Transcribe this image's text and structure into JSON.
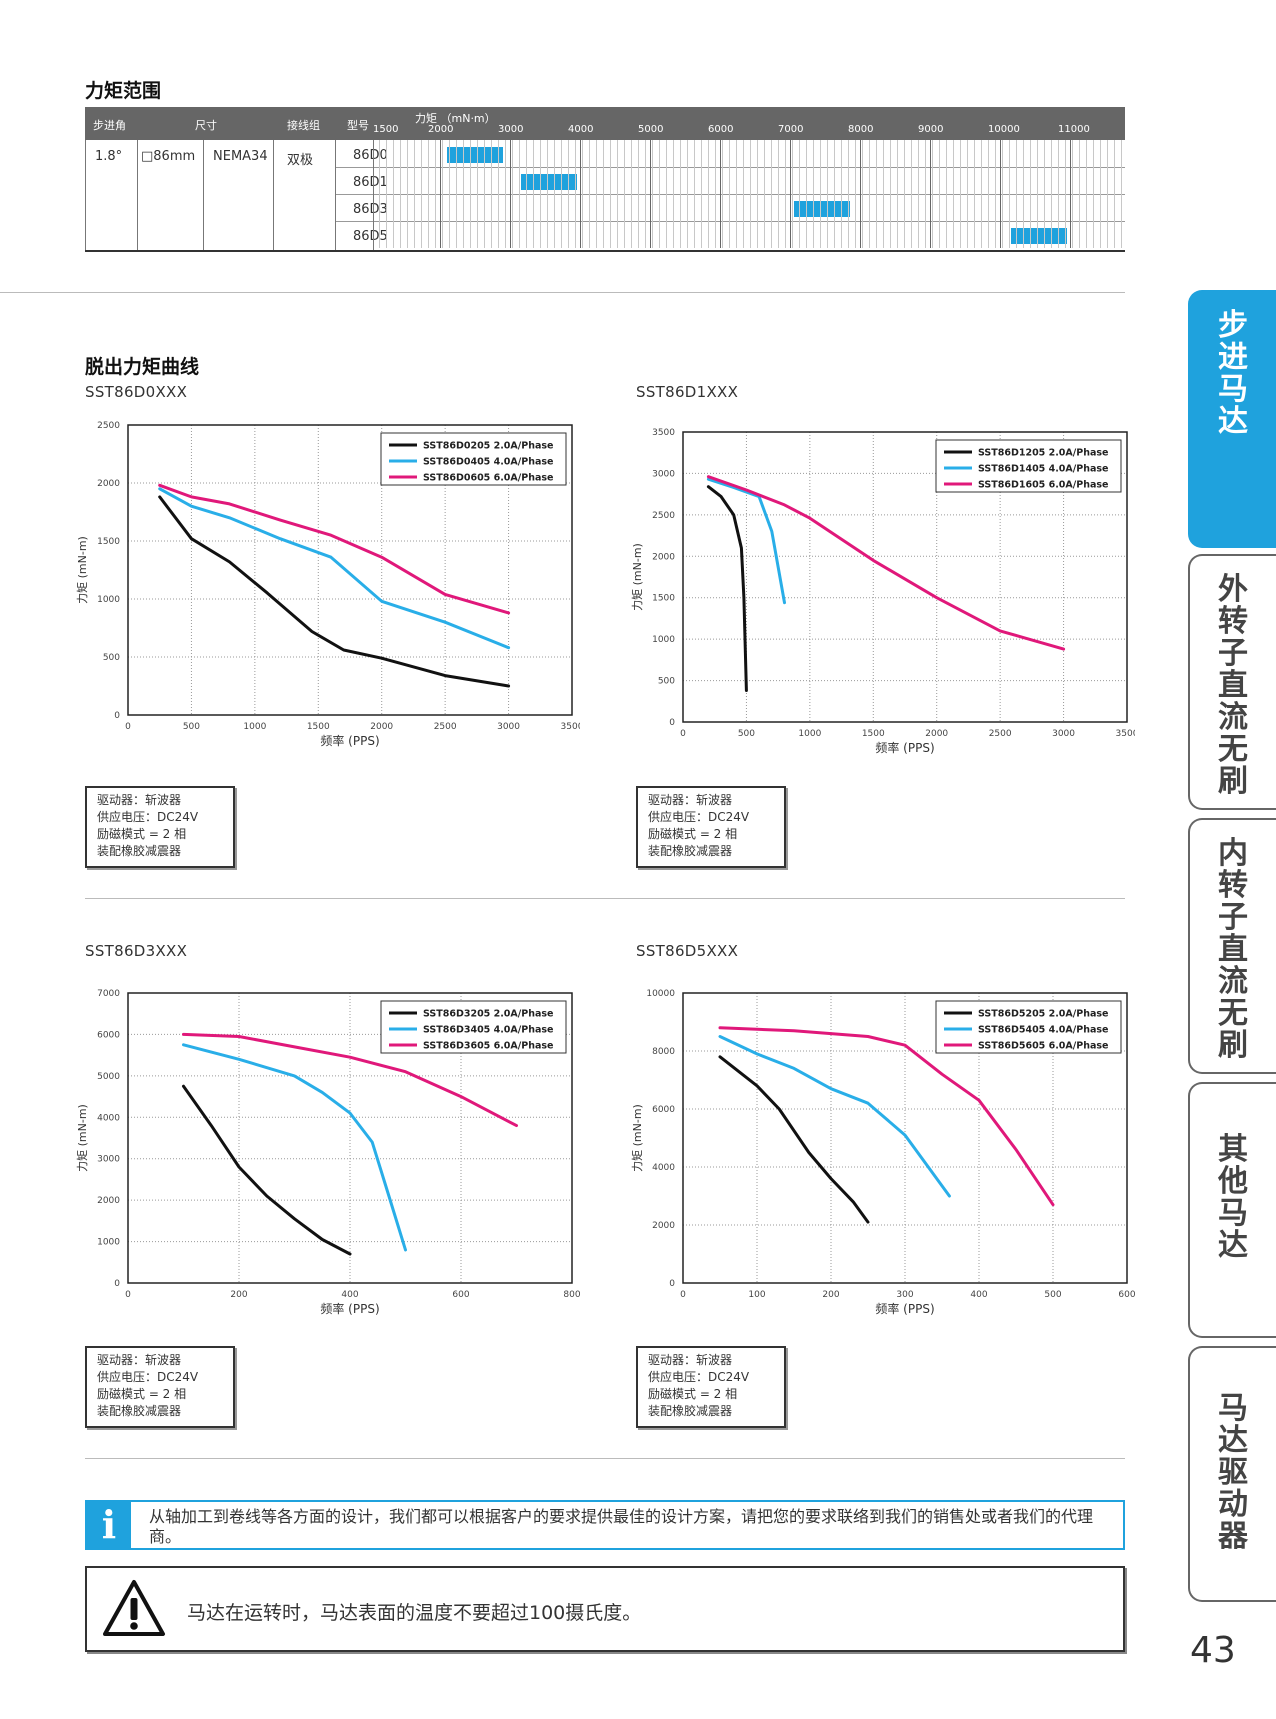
{
  "torque_section": {
    "title": "力矩范围",
    "headers": {
      "step_angle": "步进角",
      "size": "尺寸",
      "winding": "接线组",
      "model": "型号",
      "torque": "力矩 （mN·m）"
    },
    "scale_labels": [
      "1500",
      "2000",
      "3000",
      "4000",
      "5000",
      "6000",
      "7000",
      "8000",
      "9000",
      "10000",
      "11000"
    ],
    "row": {
      "step_angle": "1.8°",
      "size": "□86mm",
      "nema": "NEMA34",
      "winding": "双极"
    },
    "models": [
      {
        "name": "86D0",
        "range": [
          2100,
          2900
        ]
      },
      {
        "name": "86D1",
        "range": [
          3150,
          3950
        ]
      },
      {
        "name": "86D3",
        "range": [
          7050,
          7850
        ]
      },
      {
        "name": "86D5",
        "range": [
          10150,
          10950
        ]
      }
    ],
    "bar_color": "#1fa2dd"
  },
  "curves_section": {
    "title": "脱出力矩曲线"
  },
  "charts": [
    {
      "id": "d0",
      "subtitle": "SST86D0XXX",
      "note": [
        "驱动器：斩波器",
        "供应电压：DC24V",
        "励磁模式 = 2 相",
        "装配橡胶减震器"
      ]
    },
    {
      "id": "d1",
      "subtitle": "SST86D1XXX",
      "note": [
        "驱动器：斩波器",
        "供应电压：DC24V",
        "励磁模式 = 2 相",
        "装配橡胶减震器"
      ]
    },
    {
      "id": "d3",
      "subtitle": "SST86D3XXX",
      "note": [
        "驱动器：斩波器",
        "供应电压：DC24V",
        "励磁模式 = 2 相",
        "装配橡胶减震器"
      ]
    },
    {
      "id": "d5",
      "subtitle": "SST86D5XXX",
      "note": [
        "驱动器：斩波器",
        "供应电压：DC24V",
        "励磁模式 = 2 相",
        "装配橡胶减震器"
      ]
    }
  ],
  "chart_data": [
    {
      "type": "line",
      "xlabel": "频率 (PPS)",
      "ylabel": "力矩 (mN-m)",
      "xlim": [
        0,
        3500
      ],
      "ylim": [
        0,
        2500
      ],
      "xticks": [
        0,
        500,
        1000,
        1500,
        2000,
        2500,
        3000,
        3500
      ],
      "yticks": [
        0,
        500,
        1000,
        1500,
        2000,
        2500
      ],
      "grid": true,
      "legend": "top-right",
      "series": [
        {
          "name": "SST86D0205  2.0A/Phase",
          "color": "#111111",
          "points": [
            [
              250,
              1880
            ],
            [
              500,
              1520
            ],
            [
              800,
              1320
            ],
            [
              1100,
              1050
            ],
            [
              1450,
              720
            ],
            [
              1700,
              560
            ],
            [
              2000,
              490
            ],
            [
              2500,
              340
            ],
            [
              3000,
              250
            ]
          ]
        },
        {
          "name": "SST86D0405  4.0A/Phase",
          "color": "#29aee8",
          "points": [
            [
              250,
              1950
            ],
            [
              500,
              1800
            ],
            [
              800,
              1700
            ],
            [
              1200,
              1520
            ],
            [
              1600,
              1360
            ],
            [
              2000,
              980
            ],
            [
              2500,
              800
            ],
            [
              3000,
              580
            ]
          ]
        },
        {
          "name": "SST86D0605  6.0A/Phase",
          "color": "#e0187a",
          "points": [
            [
              250,
              1980
            ],
            [
              500,
              1880
            ],
            [
              800,
              1820
            ],
            [
              1200,
              1680
            ],
            [
              1600,
              1550
            ],
            [
              2000,
              1360
            ],
            [
              2500,
              1040
            ],
            [
              3000,
              880
            ]
          ]
        }
      ]
    },
    {
      "type": "line",
      "xlabel": "频率 (PPS)",
      "ylabel": "力矩 (mN-m)",
      "xlim": [
        0,
        3500
      ],
      "ylim": [
        0,
        3500
      ],
      "xticks": [
        0,
        500,
        1000,
        1500,
        2000,
        2500,
        3000,
        3500
      ],
      "yticks": [
        0,
        500,
        1000,
        1500,
        2000,
        2500,
        3000,
        3500
      ],
      "grid": true,
      "legend": "top-right",
      "series": [
        {
          "name": "SST86D1205  2.0A/Phase",
          "color": "#111111",
          "points": [
            [
              200,
              2840
            ],
            [
              300,
              2720
            ],
            [
              400,
              2500
            ],
            [
              460,
              2100
            ],
            [
              480,
              1500
            ],
            [
              500,
              380
            ]
          ]
        },
        {
          "name": "SST86D1405  4.0A/Phase",
          "color": "#29aee8",
          "points": [
            [
              200,
              2930
            ],
            [
              400,
              2830
            ],
            [
              600,
              2720
            ],
            [
              700,
              2300
            ],
            [
              800,
              1440
            ]
          ]
        },
        {
          "name": "SST86D1605  6.0A/Phase",
          "color": "#e0187a",
          "points": [
            [
              200,
              2960
            ],
            [
              500,
              2800
            ],
            [
              800,
              2620
            ],
            [
              1000,
              2460
            ],
            [
              1500,
              1950
            ],
            [
              2000,
              1500
            ],
            [
              2500,
              1100
            ],
            [
              3000,
              880
            ]
          ]
        }
      ]
    },
    {
      "type": "line",
      "xlabel": "频率 (PPS)",
      "ylabel": "力矩 (mN-m)",
      "xlim": [
        0,
        800
      ],
      "ylim": [
        0,
        7000
      ],
      "xticks": [
        0,
        200,
        400,
        600,
        800
      ],
      "yticks": [
        0,
        1000,
        2000,
        3000,
        4000,
        5000,
        6000,
        7000
      ],
      "grid": true,
      "legend": "top-right",
      "series": [
        {
          "name": "SST86D3205  2.0A/Phase",
          "color": "#111111",
          "points": [
            [
              100,
              4750
            ],
            [
              150,
              3800
            ],
            [
              200,
              2800
            ],
            [
              250,
              2100
            ],
            [
              300,
              1550
            ],
            [
              350,
              1050
            ],
            [
              400,
              700
            ]
          ]
        },
        {
          "name": "SST86D3405  4.0A/Phase",
          "color": "#29aee8",
          "points": [
            [
              100,
              5750
            ],
            [
              200,
              5400
            ],
            [
              300,
              5000
            ],
            [
              350,
              4600
            ],
            [
              400,
              4100
            ],
            [
              440,
              3400
            ],
            [
              470,
              2100
            ],
            [
              500,
              800
            ]
          ]
        },
        {
          "name": "SST86D3605  6.0A/Phase",
          "color": "#e0187a",
          "points": [
            [
              100,
              6000
            ],
            [
              200,
              5950
            ],
            [
              300,
              5700
            ],
            [
              400,
              5450
            ],
            [
              500,
              5100
            ],
            [
              600,
              4500
            ],
            [
              700,
              3800
            ]
          ]
        }
      ]
    },
    {
      "type": "line",
      "xlabel": "频率 (PPS)",
      "ylabel": "力矩 (mN-m)",
      "xlim": [
        0,
        600
      ],
      "ylim": [
        0,
        10000
      ],
      "xticks": [
        0,
        100,
        200,
        300,
        400,
        500,
        600
      ],
      "yticks": [
        0,
        2000,
        4000,
        6000,
        8000,
        10000
      ],
      "grid": true,
      "legend": "top-right",
      "series": [
        {
          "name": "SST86D5205  2.0A/Phase",
          "color": "#111111",
          "points": [
            [
              50,
              7800
            ],
            [
              100,
              6800
            ],
            [
              130,
              6000
            ],
            [
              170,
              4500
            ],
            [
              200,
              3600
            ],
            [
              230,
              2800
            ],
            [
              250,
              2100
            ]
          ]
        },
        {
          "name": "SST86D5405  4.0A/Phase",
          "color": "#29aee8",
          "points": [
            [
              50,
              8500
            ],
            [
              100,
              7900
            ],
            [
              150,
              7400
            ],
            [
              200,
              6700
            ],
            [
              250,
              6200
            ],
            [
              300,
              5100
            ],
            [
              360,
              3000
            ]
          ]
        },
        {
          "name": "SST86D5605  6.0A/Phase",
          "color": "#e0187a",
          "points": [
            [
              50,
              8800
            ],
            [
              150,
              8700
            ],
            [
              250,
              8500
            ],
            [
              300,
              8200
            ],
            [
              350,
              7200
            ],
            [
              400,
              6300
            ],
            [
              450,
              4600
            ],
            [
              500,
              2700
            ]
          ]
        }
      ]
    }
  ],
  "info": {
    "icon": "i",
    "text": "从轴加工到卷线等各方面的设计，我们都可以根据客户的要求提供最佳的设计方案，请把您的要求联络到我们的销售处或者我们的代理商。"
  },
  "warning": {
    "text": "马达在运转时，马达表面的温度不要超过100摄氏度。"
  },
  "tabs": [
    {
      "label": "步进马达",
      "active": true
    },
    {
      "label": "外转子直流无刷",
      "active": false
    },
    {
      "label": "内转子直流无刷",
      "active": false
    },
    {
      "label": "其他马达",
      "active": false
    },
    {
      "label": "马达驱动器",
      "active": false
    }
  ],
  "page_number": "43"
}
